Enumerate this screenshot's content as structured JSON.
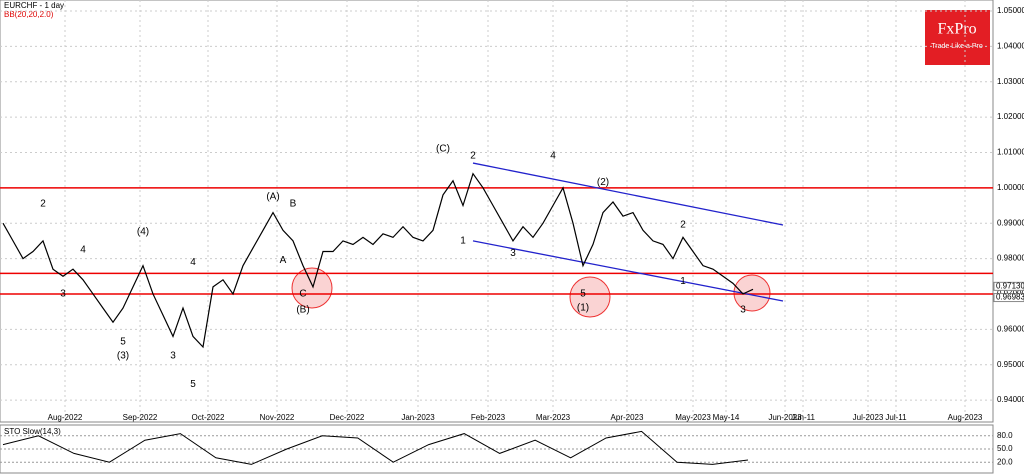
{
  "chart_data": {
    "type": "line",
    "title": "EURCHF - 1 day",
    "subtitle": "BB(20,20,2.0)",
    "logo": {
      "name": "FxPro",
      "tagline": "Trade Like a Pro"
    },
    "x_labels": [
      "Aug-2022",
      "Sep-2022",
      "Oct-2022",
      "Nov-2022",
      "Dec-2022",
      "Jan-2023",
      "Feb-2023",
      "Mar-2023",
      "Apr-2023",
      "May-2023",
      "May-14",
      "Jun-2023",
      "Jun-11",
      "Jul-2023",
      "Jul-11",
      "Aug-2023"
    ],
    "series": [
      {
        "name": "EURCHF",
        "color": "#000000",
        "values": [
          0.99,
          0.985,
          0.98,
          0.982,
          0.985,
          0.977,
          0.975,
          0.977,
          0.974,
          0.97,
          0.966,
          0.962,
          0.966,
          0.972,
          0.978,
          0.97,
          0.964,
          0.958,
          0.966,
          0.958,
          0.955,
          0.972,
          0.974,
          0.97,
          0.978,
          0.983,
          0.988,
          0.993,
          0.988,
          0.985,
          0.978,
          0.972,
          0.982,
          0.982,
          0.985,
          0.984,
          0.986,
          0.984,
          0.987,
          0.986,
          0.989,
          0.986,
          0.985,
          0.988,
          0.998,
          1.002,
          0.995,
          1.004,
          1.0,
          0.995,
          0.99,
          0.985,
          0.989,
          0.986,
          0.99,
          0.995,
          1.0,
          0.99,
          0.978,
          0.984,
          0.993,
          0.996,
          0.992,
          0.993,
          0.988,
          0.985,
          0.984,
          0.98,
          0.986,
          0.982,
          0.978,
          0.977,
          0.975,
          0.973,
          0.97,
          0.9713
        ]
      }
    ],
    "ylim": [
      0.9338,
      1.0531
    ],
    "yticks": [
      {
        "value": 0.94,
        "label": "0.94000"
      },
      {
        "value": 0.95,
        "label": "0.95000"
      },
      {
        "value": 0.96,
        "label": "0.96000"
      },
      {
        "value": 0.97,
        "label": "0.97000"
      },
      {
        "value": 0.98,
        "label": "0.98000"
      },
      {
        "value": 0.99,
        "label": "0.99000"
      },
      {
        "value": 1.0,
        "label": "1.00000"
      },
      {
        "value": 1.01,
        "label": "1.01000"
      },
      {
        "value": 1.02,
        "label": "1.02000"
      },
      {
        "value": 1.03,
        "label": "1.03000"
      },
      {
        "value": 1.04,
        "label": "1.04000"
      },
      {
        "value": 1.05,
        "label": "1.05000"
      }
    ],
    "levels": [
      1.0,
      0.9758,
      0.97
    ],
    "price_labels": [
      {
        "value": 0.9713,
        "label": "0.97130"
      },
      {
        "value": 0.96983,
        "label": "0.96983"
      }
    ],
    "channels": [
      {
        "from": [
          47,
          1.007
        ],
        "to": [
          78,
          0.9895
        ]
      },
      {
        "from": [
          47,
          0.985
        ],
        "to": [
          78,
          0.968
        ]
      }
    ],
    "annotations": [
      {
        "text": "(C)",
        "i": 44,
        "v": 1.011
      },
      {
        "text": "2",
        "i": 47,
        "v": 1.009
      },
      {
        "text": "(A)",
        "i": 27,
        "v": 0.9975
      },
      {
        "text": "B",
        "i": 29,
        "v": 0.9955
      },
      {
        "text": "A",
        "i": 28,
        "v": 0.9795
      },
      {
        "text": "C",
        "i": 30,
        "v": 0.97
      },
      {
        "text": "(B)",
        "i": 30,
        "v": 0.9655
      },
      {
        "text": "(4)",
        "i": 14,
        "v": 0.9875
      },
      {
        "text": "4",
        "i": 8,
        "v": 0.9825
      },
      {
        "text": "2",
        "i": 4,
        "v": 0.9955
      },
      {
        "text": "3",
        "i": 6,
        "v": 0.97
      },
      {
        "text": "5",
        "i": 12,
        "v": 0.9565
      },
      {
        "text": "(3)",
        "i": 12,
        "v": 0.9525
      },
      {
        "text": "4",
        "i": 19,
        "v": 0.979
      },
      {
        "text": "3",
        "i": 17,
        "v": 0.9525
      },
      {
        "text": "5",
        "i": 19,
        "v": 0.9445
      },
      {
        "text": "1",
        "i": 46,
        "v": 0.985
      },
      {
        "text": "3",
        "i": 51,
        "v": 0.9815
      },
      {
        "text": "4",
        "i": 55,
        "v": 1.009
      },
      {
        "text": "(2)",
        "i": 60,
        "v": 1.0015
      },
      {
        "text": "5",
        "i": 58,
        "v": 0.97
      },
      {
        "text": "(1)",
        "i": 58,
        "v": 0.966
      },
      {
        "text": "2",
        "i": 68,
        "v": 0.9895
      },
      {
        "text": "1",
        "i": 68,
        "v": 0.9735
      },
      {
        "text": "3",
        "i": 74,
        "v": 0.9655
      }
    ],
    "sto": {
      "title": "STO Slow(14,3)",
      "color": "#000000",
      "values": [
        60,
        80,
        40,
        20,
        70,
        85,
        30,
        15,
        50,
        80,
        75,
        20,
        60,
        85,
        40,
        70,
        30,
        75,
        90,
        20,
        15,
        25
      ],
      "ylim": [
        0,
        100
      ],
      "yticks": [
        {
          "value": 80,
          "label": "80.0"
        },
        {
          "value": 50,
          "label": "50.0"
        },
        {
          "value": 20,
          "label": "20.0"
        }
      ]
    }
  }
}
